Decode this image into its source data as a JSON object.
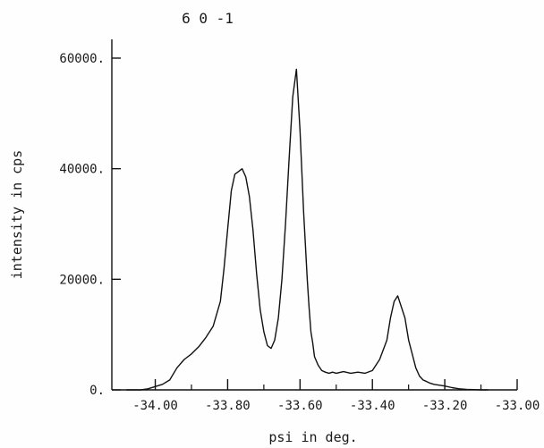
{
  "chart_data": {
    "type": "line",
    "title": "6 0 -1",
    "xlabel": "psi in deg.",
    "ylabel": "intensity in cps",
    "xlim": [
      -34.12,
      -33.0
    ],
    "ylim": [
      0,
      60000
    ],
    "xticks": [
      "-34.00",
      "-33.80",
      "-33.60",
      "-33.40",
      "-33.20",
      "-33.00"
    ],
    "xtick_values": [
      -34.0,
      -33.8,
      -33.6,
      -33.4,
      -33.2,
      -33.0
    ],
    "yticks": [
      "0.",
      "20000.",
      "40000.",
      "60000."
    ],
    "ytick_values": [
      0,
      20000,
      40000,
      60000
    ],
    "grid": false,
    "series": [
      {
        "x": [
          -34.08,
          -34.04,
          -34.02,
          -34.0,
          -33.98,
          -33.96,
          -33.94,
          -33.92,
          -33.9,
          -33.88,
          -33.86,
          -33.84,
          -33.82,
          -33.81,
          -33.8,
          -33.79,
          -33.78,
          -33.77,
          -33.76,
          -33.75,
          -33.74,
          -33.73,
          -33.72,
          -33.71,
          -33.7,
          -33.69,
          -33.68,
          -33.67,
          -33.66,
          -33.65,
          -33.64,
          -33.63,
          -33.62,
          -33.61,
          -33.6,
          -33.59,
          -33.58,
          -33.575,
          -33.57,
          -33.565,
          -33.56,
          -33.55,
          -33.54,
          -33.53,
          -33.52,
          -33.51,
          -33.5,
          -33.48,
          -33.46,
          -33.44,
          -33.42,
          -33.4,
          -33.38,
          -33.36,
          -33.35,
          -33.34,
          -33.33,
          -33.32,
          -33.31,
          -33.3,
          -33.29,
          -33.28,
          -33.27,
          -33.26,
          -33.25,
          -33.24,
          -33.23,
          -33.22,
          -33.2,
          -33.18,
          -33.16,
          -33.14,
          -33.12,
          -33.1,
          -33.08
        ],
        "y": [
          0,
          0,
          200,
          600,
          1000,
          1800,
          4000,
          5500,
          6500,
          7800,
          9500,
          11500,
          16000,
          22000,
          29000,
          36000,
          39000,
          39500,
          40000,
          38500,
          35000,
          29000,
          21000,
          14500,
          10500,
          8000,
          7500,
          9000,
          13000,
          20000,
          30000,
          42000,
          53000,
          58000,
          47000,
          32000,
          20000,
          15000,
          10500,
          8500,
          6000,
          4500,
          3500,
          3200,
          3000,
          3200,
          3000,
          3300,
          3000,
          3200,
          3000,
          3500,
          5500,
          9000,
          13000,
          16000,
          17000,
          15000,
          13000,
          9000,
          6500,
          4000,
          2500,
          1800,
          1500,
          1200,
          1000,
          900,
          700,
          400,
          200,
          100,
          50,
          0,
          0
        ]
      }
    ]
  }
}
